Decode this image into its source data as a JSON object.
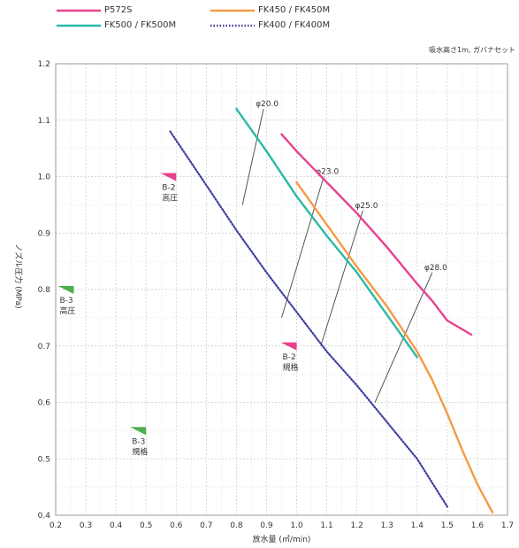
{
  "chart_data": {
    "type": "line",
    "note": "吸水高さ1m, ガバナセット",
    "xlabel": "放水量 (㎥/min)",
    "ylabel": "ノズル圧力 (MPa)",
    "xlim": [
      0.2,
      1.7
    ],
    "ylim": [
      0.4,
      1.2
    ],
    "x_ticks": [
      "0.2",
      "0.3",
      "0.4",
      "0.5",
      "0.6",
      "0.7",
      "0.8",
      "0.9",
      "1.0",
      "1.1",
      "1.2",
      "1.3",
      "1.4",
      "1.5",
      "1.6",
      "1.7"
    ],
    "y_ticks": [
      "0.4",
      "0.5",
      "0.6",
      "0.7",
      "0.8",
      "0.9",
      "1.0",
      "1.1",
      "1.2"
    ],
    "grid": true,
    "series": [
      {
        "name": "P572S",
        "color": "#e8418f",
        "style": "solid",
        "points": [
          [
            0.95,
            1.075
          ],
          [
            1.0,
            1.045
          ],
          [
            1.1,
            0.99
          ],
          [
            1.2,
            0.935
          ],
          [
            1.3,
            0.875
          ],
          [
            1.4,
            0.81
          ],
          [
            1.45,
            0.78
          ],
          [
            1.5,
            0.745
          ],
          [
            1.58,
            0.72
          ]
        ]
      },
      {
        "name": "FK450 / FK450M",
        "color": "#f59a45",
        "style": "solid",
        "points": [
          [
            1.0,
            0.99
          ],
          [
            1.1,
            0.915
          ],
          [
            1.2,
            0.84
          ],
          [
            1.3,
            0.77
          ],
          [
            1.4,
            0.69
          ],
          [
            1.45,
            0.64
          ],
          [
            1.5,
            0.58
          ],
          [
            1.55,
            0.515
          ],
          [
            1.6,
            0.455
          ],
          [
            1.65,
            0.405
          ]
        ]
      },
      {
        "name": "FK500 / FK500M",
        "color": "#2bb9a8",
        "style": "solid",
        "points": [
          [
            0.8,
            1.12
          ],
          [
            0.9,
            1.045
          ],
          [
            1.0,
            0.965
          ],
          [
            1.1,
            0.895
          ],
          [
            1.2,
            0.83
          ],
          [
            1.3,
            0.755
          ],
          [
            1.4,
            0.68
          ]
        ]
      },
      {
        "name": "FK400 / FK400M",
        "color": "#3b3d9e",
        "style": "dotted",
        "points": [
          [
            0.58,
            1.08
          ],
          [
            0.7,
            0.985
          ],
          [
            0.8,
            0.905
          ],
          [
            0.9,
            0.83
          ],
          [
            1.0,
            0.76
          ],
          [
            1.1,
            0.69
          ],
          [
            1.2,
            0.63
          ],
          [
            1.3,
            0.565
          ],
          [
            1.4,
            0.5
          ],
          [
            1.5,
            0.415
          ]
        ]
      }
    ],
    "nozzle_lines": [
      {
        "label": "φ20.0",
        "from": [
          0.82,
          0.95
        ],
        "to": [
          0.89,
          1.12
        ]
      },
      {
        "label": "φ23.0",
        "from": [
          0.95,
          0.75
        ],
        "to": [
          1.09,
          1.0
        ]
      },
      {
        "label": "φ25.0",
        "from": [
          1.08,
          0.7
        ],
        "to": [
          1.22,
          0.94
        ]
      },
      {
        "label": "φ28.0",
        "from": [
          1.26,
          0.6
        ],
        "to": [
          1.45,
          0.83
        ]
      }
    ],
    "markers": [
      {
        "label": [
          "B-2",
          "高圧"
        ],
        "color": "#e8418f",
        "at": [
          0.6,
          1.0
        ]
      },
      {
        "label": [
          "B-2",
          "規格"
        ],
        "color": "#e8418f",
        "at": [
          1.0,
          0.7
        ]
      },
      {
        "label": [
          "B-3",
          "高圧"
        ],
        "color": "#4caf50",
        "at": [
          0.26,
          0.8
        ]
      },
      {
        "label": [
          "B-3",
          "規格"
        ],
        "color": "#4caf50",
        "at": [
          0.5,
          0.55
        ]
      }
    ]
  }
}
